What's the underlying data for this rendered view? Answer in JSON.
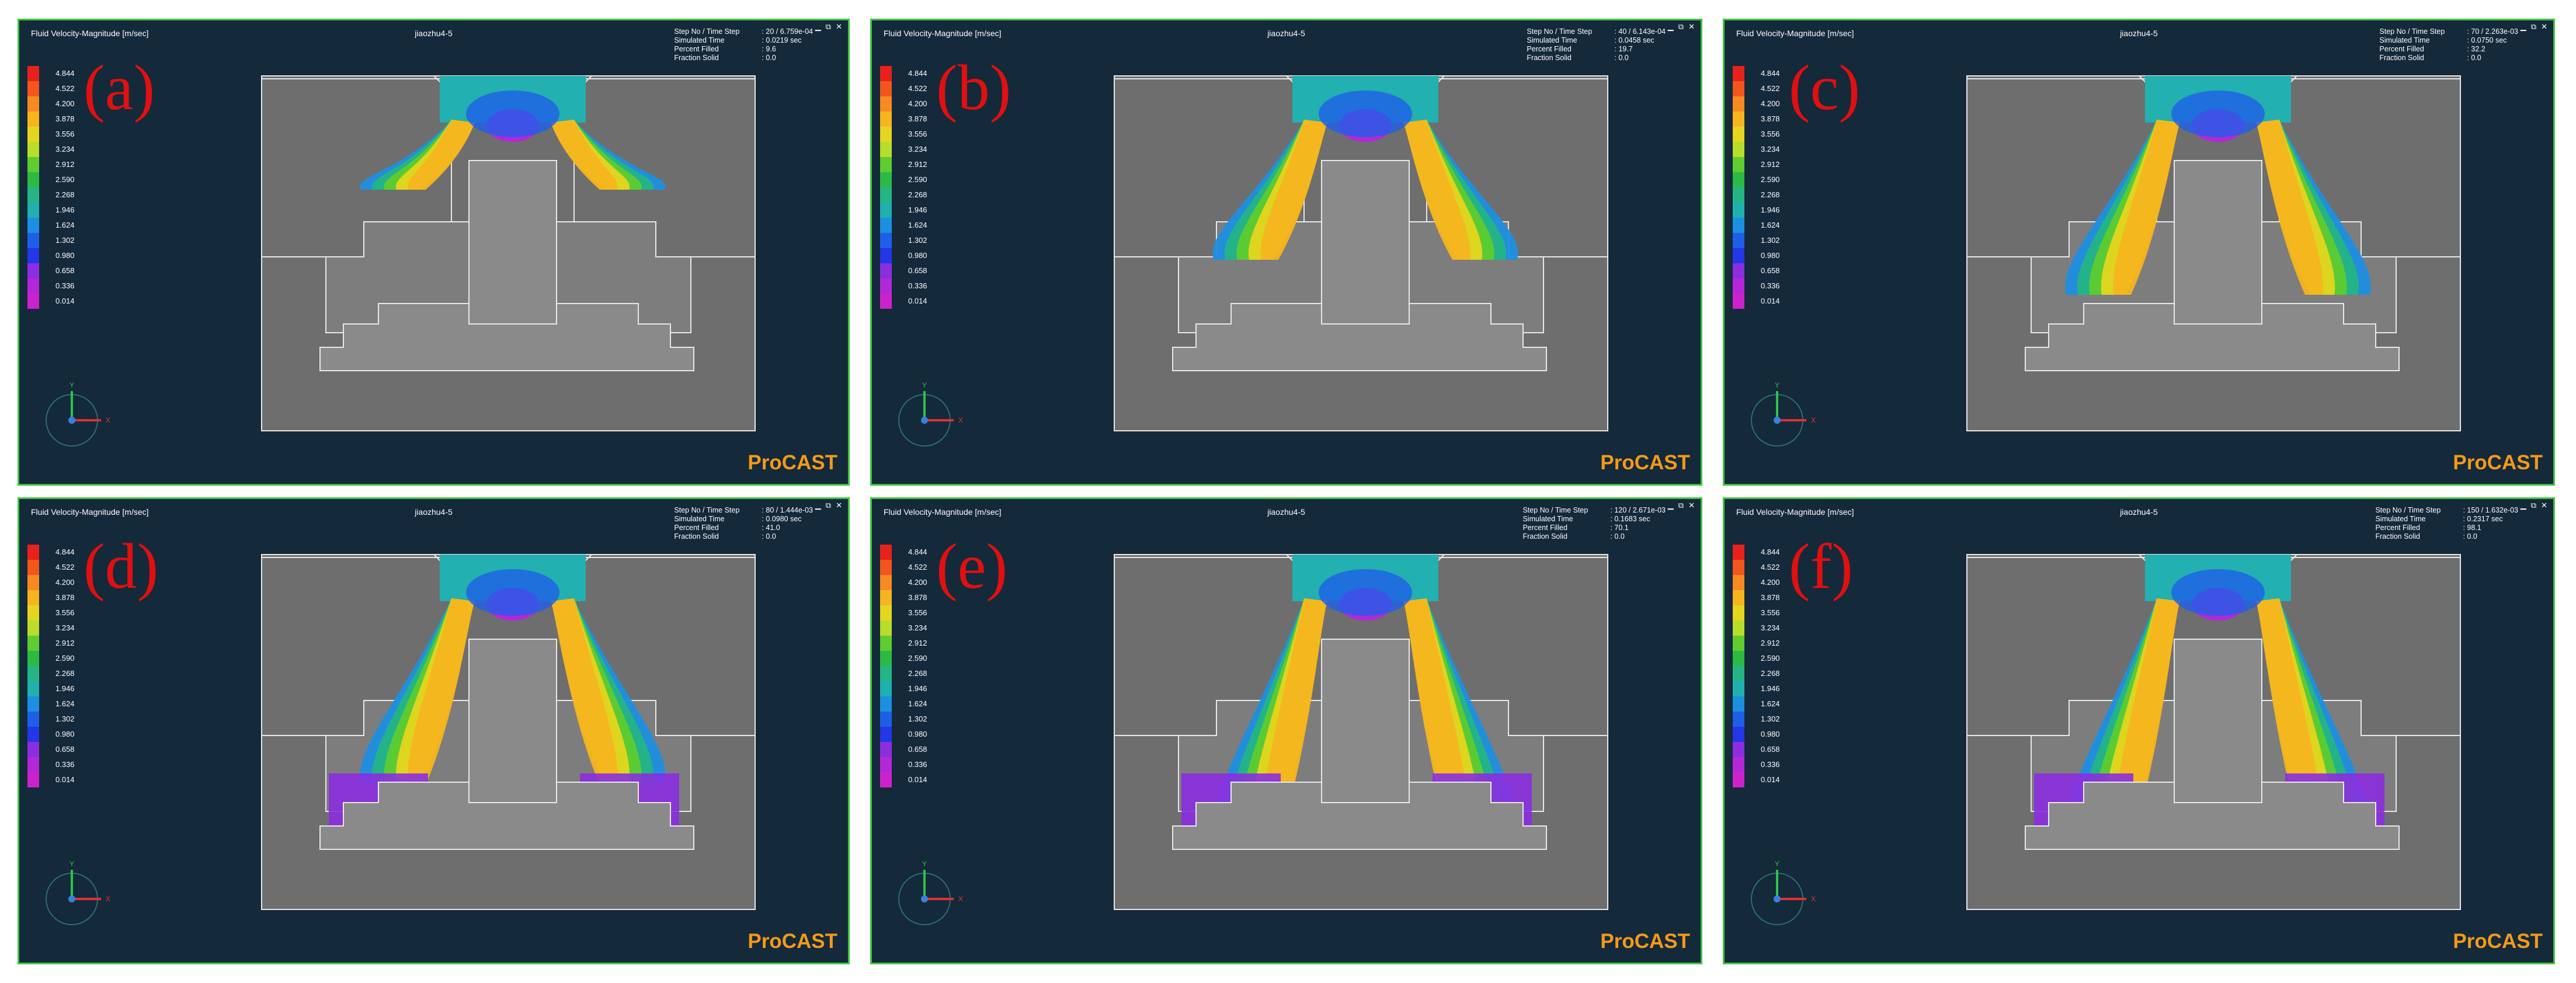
{
  "panels": [
    {
      "label": "(a)",
      "title": "Fluid Velocity-Magnitude [m/sec]",
      "case": "jiaozhu4-5",
      "step": ": 20 / 6.759e-04",
      "time": ": 0.0219 sec",
      "filled": ": 9.6",
      "solid": ": 0.0",
      "brand": "ProCAST"
    },
    {
      "label": "(b)",
      "title": "Fluid Velocity-Magnitude [m/sec]",
      "case": "jiaozhu4-5",
      "step": ": 40 / 6.143e-04",
      "time": ": 0.0458 sec",
      "filled": ": 19.7",
      "solid": ": 0.0",
      "brand": "ProCAST"
    },
    {
      "label": "(c)",
      "title": "Fluid Velocity-Magnitude [m/sec]",
      "case": "jiaozhu4-5",
      "step": ": 70 / 2.263e-03",
      "time": ": 0.0750 sec",
      "filled": ": 32.2",
      "solid": ": 0.0",
      "brand": "ProCAST"
    },
    {
      "label": "(d)",
      "title": "Fluid Velocity-Magnitude [m/sec]",
      "case": "jiaozhu4-5",
      "step": ": 80 / 1.444e-03",
      "time": ": 0.0980 sec",
      "filled": ": 41.0",
      "solid": ": 0.0",
      "brand": "ProCAST"
    },
    {
      "label": "(e)",
      "title": "Fluid Velocity-Magnitude [m/sec]",
      "case": "jiaozhu4-5",
      "step": ": 120 / 2.671e-03",
      "time": ": 0.1683 sec",
      "filled": ": 70.1",
      "solid": ": 0.0",
      "brand": "ProCAST"
    },
    {
      "label": "(f)",
      "title": "Fluid Velocity-Magnitude [m/sec]",
      "case": "jiaozhu4-5",
      "step": ": 150 / 1.632e-03",
      "time": ": 0.2317 sec",
      "filled": ": 98.1",
      "solid": ": 0.0",
      "brand": "ProCAST"
    }
  ],
  "info_labels": {
    "step": "Step No / Time Step",
    "time": "Simulated Time",
    "filled": "Percent Filled",
    "solid": "Fraction Solid"
  },
  "legend": {
    "values": [
      "4.844",
      "4.522",
      "4.200",
      "3.878",
      "3.556",
      "3.234",
      "2.912",
      "2.590",
      "2.268",
      "1.946",
      "1.624",
      "1.302",
      "0.980",
      "0.658",
      "0.336",
      "0.014"
    ],
    "colors": [
      "#e8221b",
      "#f2561c",
      "#f78a21",
      "#f6b51f",
      "#e6d51f",
      "#b8dd2a",
      "#5fcc2f",
      "#2cba45",
      "#25b585",
      "#1fb0b0",
      "#1d8fe0",
      "#1f5fe8",
      "#2336e8",
      "#8b2ee0",
      "#b427d9",
      "#cc22cc"
    ]
  },
  "axes": {
    "y": "Y",
    "x": "X"
  },
  "window_controls": "▁ ⧉ ✕"
}
